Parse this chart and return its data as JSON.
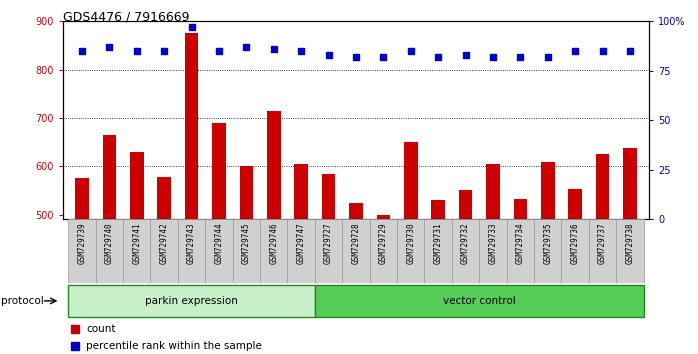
{
  "title": "GDS4476 / 7916669",
  "samples": [
    "GSM729739",
    "GSM729740",
    "GSM729741",
    "GSM729742",
    "GSM729743",
    "GSM729744",
    "GSM729745",
    "GSM729746",
    "GSM729747",
    "GSM729727",
    "GSM729728",
    "GSM729729",
    "GSM729730",
    "GSM729731",
    "GSM729732",
    "GSM729733",
    "GSM729734",
    "GSM729735",
    "GSM729736",
    "GSM729737",
    "GSM729738"
  ],
  "counts": [
    575,
    665,
    630,
    577,
    875,
    690,
    600,
    715,
    605,
    585,
    525,
    500,
    650,
    530,
    550,
    605,
    532,
    609,
    554,
    625,
    638
  ],
  "percentile_ranks": [
    85,
    87,
    85,
    85,
    97,
    85,
    87,
    86,
    85,
    83,
    82,
    82,
    85,
    82,
    83,
    82,
    82,
    82,
    85,
    85,
    85
  ],
  "parkin_count": 9,
  "vector_count": 12,
  "ylim_left": [
    490,
    900
  ],
  "ylim_right": [
    0,
    100
  ],
  "yticks_left": [
    500,
    600,
    700,
    800,
    900
  ],
  "yticks_right": [
    0,
    25,
    50,
    75,
    100
  ],
  "bar_color": "#cc0000",
  "dot_color": "#0000cc",
  "parkin_bg": "#c8f0c8",
  "vector_bg": "#55cc55",
  "protocol_label": "protocol",
  "parkin_label": "parkin expression",
  "vector_label": "vector control",
  "legend_count": "count",
  "legend_pct": "percentile rank within the sample",
  "axis_bg": "#d0d0d0"
}
